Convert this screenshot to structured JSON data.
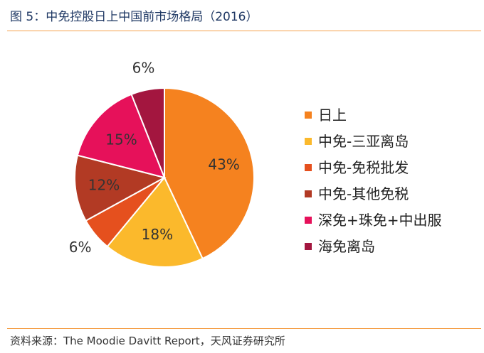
{
  "header": {
    "title": "图 5：中免控股日上中国前市场格局（2016）"
  },
  "footer": {
    "source": "资料来源：The Moodie Davitt Report，天风证券研究所"
  },
  "chart_data": {
    "type": "pie",
    "start_angle_deg": 0,
    "direction": "clockwise",
    "label_suffix": "%",
    "legend_position": "right",
    "slices": [
      {
        "label": "日上",
        "value": 43,
        "color": "#f5821f"
      },
      {
        "label": "中免-三亚离岛",
        "value": 18,
        "color": "#fbb92c"
      },
      {
        "label": "中免-免税批发",
        "value": 6,
        "color": "#e5501e"
      },
      {
        "label": "中免-其他免税",
        "value": 12,
        "color": "#b23a24"
      },
      {
        "label": "深免+珠免+中出服",
        "value": 15,
        "color": "#e6115a"
      },
      {
        "label": "海免离岛",
        "value": 6,
        "color": "#a3163f"
      }
    ]
  }
}
